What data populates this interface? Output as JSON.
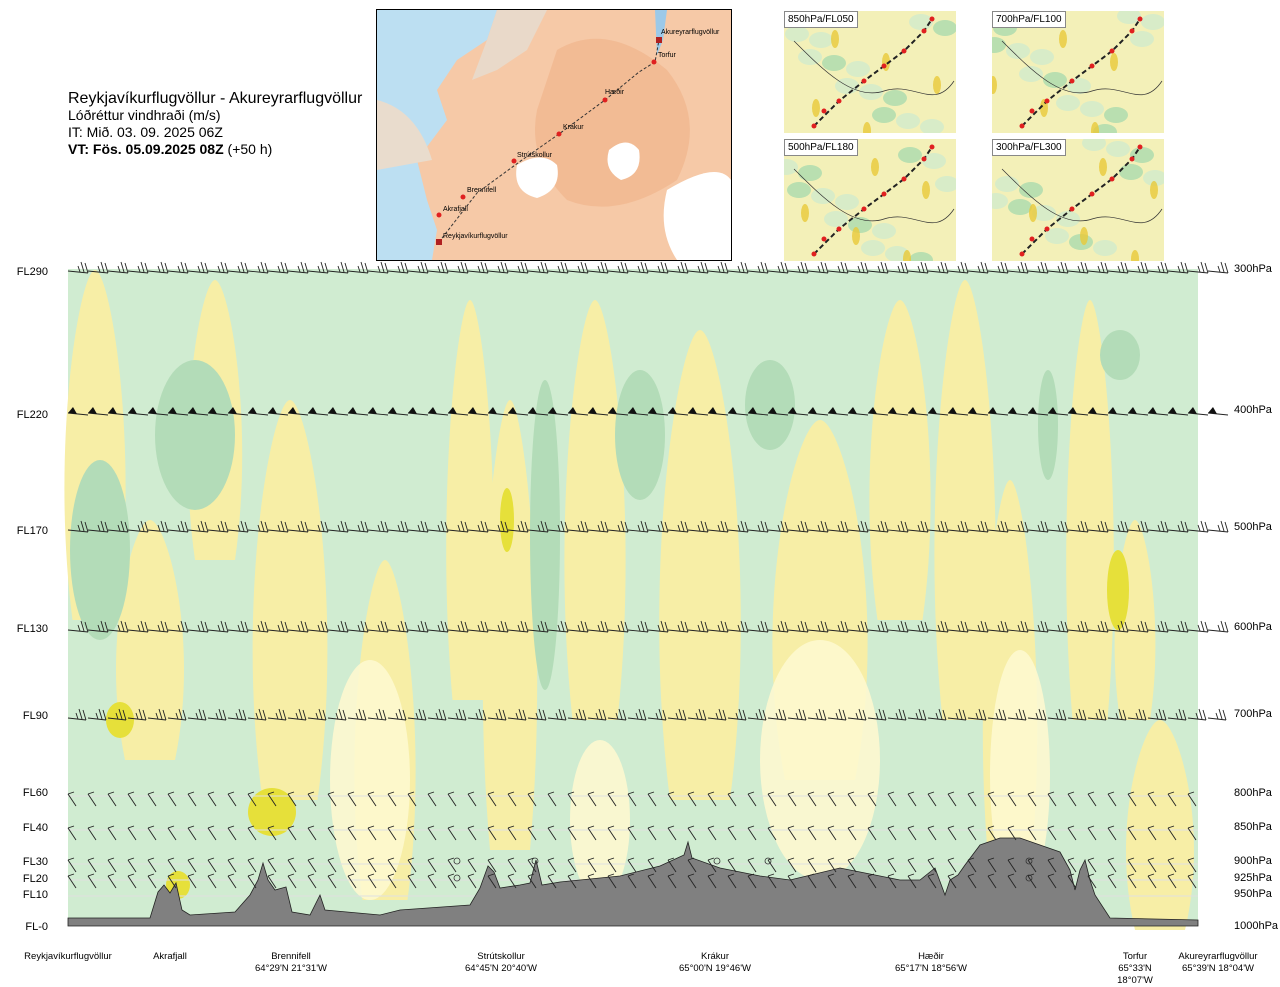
{
  "header": {
    "route": "Reykjavíkurflugvöllur - Akureyrarflugvöllur",
    "parameter": "Lóðréttur vindhraði (m/s)",
    "issue_time": "IT: Mið. 03. 09. 2025 06Z",
    "valid_time_bold": "VT: Fös. 05.09.2025 08Z",
    "valid_time_offset": "(+50 h)"
  },
  "map": {
    "waypoints": [
      "Akureyrarflugvöllur",
      "Torfur",
      "Hæðir",
      "Krákur",
      "Strútskollur",
      "Brennifell",
      "Akrafjall",
      "Reykjavíkurflugvöllur"
    ]
  },
  "mini_maps": [
    {
      "label": "850hPa/FL050"
    },
    {
      "label": "700hPa/FL100"
    },
    {
      "label": "500hPa/FL180"
    },
    {
      "label": "300hPa/FL300"
    }
  ],
  "chart_data": {
    "type": "heatmap",
    "title": "Lóðréttur vindhraði (m/s)",
    "levels": [
      {
        "fl": "FL290",
        "hpa": "300hPa"
      },
      {
        "fl": "FL220",
        "hpa": "400hPa"
      },
      {
        "fl": "FL170",
        "hpa": "500hPa"
      },
      {
        "fl": "FL130",
        "hpa": "600hPa"
      },
      {
        "fl": "FL90",
        "hpa": "700hPa"
      },
      {
        "fl": "FL60",
        "hpa": "800hPa"
      },
      {
        "fl": "FL40",
        "hpa": "850hPa"
      },
      {
        "fl": "FL30",
        "hpa": "900hPa"
      },
      {
        "fl": "FL20",
        "hpa": "925hPa"
      },
      {
        "fl": "FL10",
        "hpa": "950hPa"
      },
      {
        "fl": "FL-0",
        "hpa": "1000hPa"
      }
    ],
    "locations": [
      {
        "name": "Reykjavíkurflugvöllur",
        "coord": ""
      },
      {
        "name": "Akrafjall",
        "coord": ""
      },
      {
        "name": "Brennifell",
        "coord": "64°29'N 21°31'W"
      },
      {
        "name": "Strútskollur",
        "coord": "64°45'N 20°40'W"
      },
      {
        "name": "Krákur",
        "coord": "65°00'N 19°46'W"
      },
      {
        "name": "Hæðir",
        "coord": "65°17'N 18°56'W"
      },
      {
        "name": "Torfur",
        "coord": "65°33'N 18°07'W"
      },
      {
        "name": "Akureyrarflugvöllur",
        "coord": "65°39'N 18°04'W"
      }
    ],
    "colors": {
      "strong_down": "#8fc59b",
      "down": "#b3dcb8",
      "weak_down": "#d0ecd1",
      "near_zero": "#f2fae8",
      "weak_up": "#fdf8cf",
      "up": "#f7eea6",
      "strong_up": "#e6e03a",
      "terrain": "#808080"
    }
  }
}
